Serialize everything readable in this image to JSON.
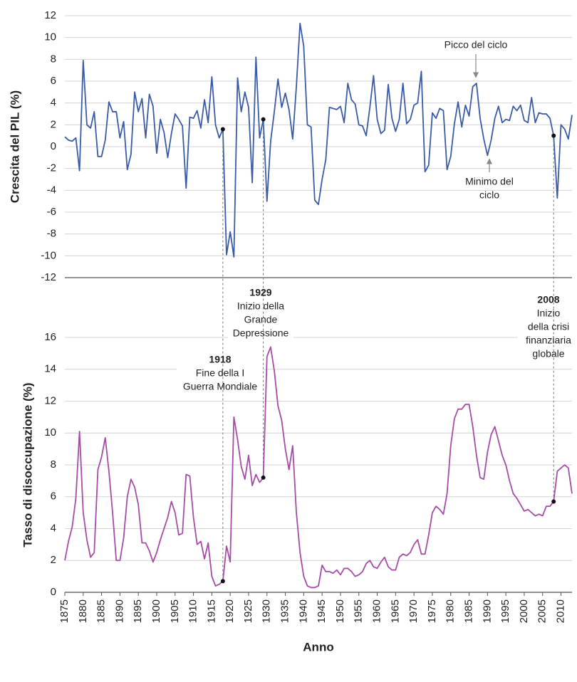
{
  "chart_data": [
    {
      "type": "line",
      "ylabel": "Crescita del PIL (%)",
      "x": [
        1875,
        1876,
        1877,
        1878,
        1879,
        1880,
        1881,
        1882,
        1883,
        1884,
        1885,
        1886,
        1887,
        1888,
        1889,
        1890,
        1891,
        1892,
        1893,
        1894,
        1895,
        1896,
        1897,
        1898,
        1899,
        1900,
        1901,
        1902,
        1903,
        1904,
        1905,
        1906,
        1907,
        1908,
        1909,
        1910,
        1911,
        1912,
        1913,
        1914,
        1915,
        1916,
        1917,
        1918,
        1919,
        1920,
        1921,
        1922,
        1923,
        1924,
        1925,
        1926,
        1927,
        1928,
        1929,
        1930,
        1931,
        1932,
        1933,
        1934,
        1935,
        1936,
        1937,
        1938,
        1939,
        1940,
        1941,
        1942,
        1943,
        1944,
        1945,
        1946,
        1947,
        1948,
        1949,
        1950,
        1951,
        1952,
        1953,
        1954,
        1955,
        1956,
        1957,
        1958,
        1959,
        1960,
        1961,
        1962,
        1963,
        1964,
        1965,
        1966,
        1967,
        1968,
        1969,
        1970,
        1971,
        1972,
        1973,
        1974,
        1975,
        1976,
        1977,
        1978,
        1979,
        1980,
        1981,
        1982,
        1983,
        1984,
        1985,
        1986,
        1987,
        1988,
        1989,
        1990,
        1991,
        1992,
        1993,
        1994,
        1995,
        1996,
        1997,
        1998,
        1999,
        2000,
        2001,
        2002,
        2003,
        2004,
        2005,
        2006,
        2007,
        2008,
        2009,
        2010,
        2011,
        2012,
        2013
      ],
      "series": [
        {
          "name": "Crescita del PIL",
          "color": "#3a5ba8",
          "values": [
            0.9,
            0.6,
            0.5,
            0.8,
            -2.2,
            7.9,
            2.0,
            1.7,
            3.2,
            -0.9,
            -0.9,
            0.6,
            4.1,
            3.2,
            3.2,
            0.8,
            2.3,
            -2.1,
            -0.7,
            5.0,
            3.2,
            4.4,
            0.8,
            4.8,
            3.7,
            -0.6,
            2.5,
            1.3,
            -1.0,
            1.2,
            3.0,
            2.5,
            1.9,
            -3.8,
            2.7,
            2.6,
            3.3,
            1.7,
            4.3,
            2.2,
            6.4,
            2.0,
            0.8,
            1.6,
            -9.9,
            -7.8,
            -10.1,
            6.3,
            3.2,
            5.0,
            3.6,
            -3.3,
            8.2,
            0.8,
            2.5,
            -5.0,
            0.5,
            3.2,
            6.2,
            3.6,
            4.9,
            3.4,
            0.7,
            5.5,
            11.3,
            9.2,
            2.0,
            1.8,
            -4.9,
            -5.3,
            -3.0,
            -1.2,
            3.6,
            3.5,
            3.4,
            3.7,
            2.2,
            5.8,
            4.3,
            3.9,
            2.0,
            1.9,
            1.0,
            3.6,
            6.5,
            2.5,
            1.2,
            1.5,
            5.7,
            2.6,
            1.4,
            2.5,
            5.8,
            2.1,
            2.5,
            3.8,
            4.0,
            6.9,
            -2.3,
            -1.7,
            3.1,
            2.6,
            3.5,
            3.3,
            -2.1,
            -0.9,
            2.1,
            4.1,
            1.8,
            3.8,
            2.8,
            5.5,
            5.8,
            2.6,
            0.7,
            -0.8,
            0.6,
            2.6,
            3.7,
            2.2,
            2.5,
            2.4,
            3.7,
            3.3,
            3.8,
            2.4,
            2.2,
            4.5,
            2.2,
            3.1,
            3.0,
            3.0,
            2.6,
            1.0,
            -4.7,
            2.0,
            1.6,
            0.7,
            2.9
          ]
        }
      ],
      "xlim": [
        1875,
        2013
      ],
      "ylim": [
        -12,
        12
      ],
      "yticks": [
        -12,
        -10,
        -8,
        -6,
        -4,
        -2,
        0,
        2,
        4,
        6,
        8,
        10,
        12
      ],
      "grid": true,
      "callouts": [
        [
          "Picco del ciclo"
        ],
        [
          "Minimo del",
          "ciclo"
        ]
      ]
    },
    {
      "type": "line",
      "ylabel": "Tasso di disoccupazione (%)",
      "xlabel": "Anno",
      "x": [
        1875,
        1876,
        1877,
        1878,
        1879,
        1880,
        1881,
        1882,
        1883,
        1884,
        1885,
        1886,
        1887,
        1888,
        1889,
        1890,
        1891,
        1892,
        1893,
        1894,
        1895,
        1896,
        1897,
        1898,
        1899,
        1900,
        1901,
        1902,
        1903,
        1904,
        1905,
        1906,
        1907,
        1908,
        1909,
        1910,
        1911,
        1912,
        1913,
        1914,
        1915,
        1916,
        1917,
        1918,
        1919,
        1920,
        1921,
        1922,
        1923,
        1924,
        1925,
        1926,
        1927,
        1928,
        1929,
        1930,
        1931,
        1932,
        1933,
        1934,
        1935,
        1936,
        1937,
        1938,
        1939,
        1940,
        1941,
        1942,
        1943,
        1944,
        1945,
        1946,
        1947,
        1948,
        1949,
        1950,
        1951,
        1952,
        1953,
        1954,
        1955,
        1956,
        1957,
        1958,
        1959,
        1960,
        1961,
        1962,
        1963,
        1964,
        1965,
        1966,
        1967,
        1968,
        1969,
        1970,
        1971,
        1972,
        1973,
        1974,
        1975,
        1976,
        1977,
        1978,
        1979,
        1980,
        1981,
        1982,
        1983,
        1984,
        1985,
        1986,
        1987,
        1988,
        1989,
        1990,
        1991,
        1992,
        1993,
        1994,
        1995,
        1996,
        1997,
        1998,
        1999,
        2000,
        2001,
        2002,
        2003,
        2004,
        2005,
        2006,
        2007,
        2008,
        2009,
        2010,
        2011,
        2012,
        2013
      ],
      "series": [
        {
          "name": "Tasso di disoccupazione",
          "color": "#a64ca6",
          "values": [
            2.0,
            3.2,
            4.1,
            5.9,
            10.1,
            5.0,
            3.3,
            2.2,
            2.5,
            7.7,
            8.5,
            9.7,
            7.6,
            5.0,
            2.0,
            2.0,
            3.4,
            6.0,
            7.1,
            6.6,
            5.5,
            3.1,
            3.1,
            2.6,
            1.9,
            2.5,
            3.3,
            4.0,
            4.7,
            5.7,
            5.0,
            3.6,
            3.7,
            7.4,
            7.3,
            4.7,
            3.0,
            3.2,
            2.1,
            3.1,
            1.0,
            0.4,
            0.5,
            0.7,
            2.9,
            1.9,
            11.0,
            9.6,
            7.9,
            7.1,
            8.6,
            6.7,
            7.4,
            6.9,
            7.2,
            14.8,
            15.4,
            13.9,
            11.7,
            10.8,
            9.0,
            7.7,
            9.2,
            5.0,
            2.5,
            1.0,
            0.4,
            0.3,
            0.3,
            0.4,
            1.7,
            1.3,
            1.3,
            1.2,
            1.4,
            1.1,
            1.5,
            1.5,
            1.3,
            1.0,
            1.1,
            1.3,
            1.8,
            2.0,
            1.6,
            1.5,
            1.9,
            2.2,
            1.6,
            1.4,
            1.4,
            2.2,
            2.4,
            2.3,
            2.5,
            3.0,
            3.3,
            2.4,
            2.4,
            3.6,
            5.0,
            5.4,
            5.2,
            4.9,
            6.2,
            9.2,
            10.9,
            11.5,
            11.5,
            11.8,
            11.8,
            10.4,
            8.6,
            7.2,
            7.1,
            8.8,
            9.9,
            10.4,
            9.5,
            8.6,
            8.0,
            7.0,
            6.2,
            5.9,
            5.5,
            5.1,
            5.2,
            5.0,
            4.8,
            4.9,
            4.8,
            5.4,
            5.4,
            5.7,
            7.6,
            7.8,
            8.0,
            7.8,
            6.2
          ]
        }
      ],
      "xlim": [
        1875,
        2013
      ],
      "ylim": [
        0,
        16
      ],
      "xticks": [
        1875,
        1880,
        1885,
        1890,
        1895,
        1900,
        1905,
        1910,
        1915,
        1920,
        1925,
        1930,
        1935,
        1940,
        1945,
        1950,
        1955,
        1960,
        1965,
        1970,
        1975,
        1980,
        1985,
        1990,
        1995,
        2000,
        2005,
        2010
      ],
      "yticks": [
        0,
        2,
        4,
        6,
        8,
        10,
        12,
        14,
        16
      ],
      "grid": true
    }
  ],
  "events": [
    {
      "year": 1918,
      "lines": [
        "Fine della I",
        "Guerra Mondiale"
      ]
    },
    {
      "year": 1929,
      "lines": [
        "Inizio della",
        "Grande",
        "Depressione"
      ]
    },
    {
      "year": 2008,
      "lines": [
        "Inizio",
        "della crisi",
        "finanziaria",
        "globale"
      ]
    }
  ]
}
